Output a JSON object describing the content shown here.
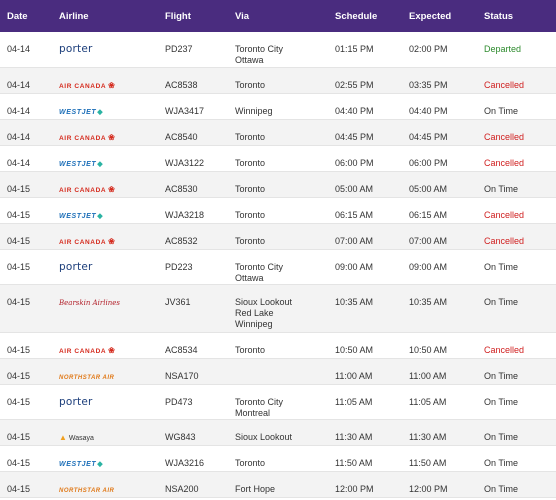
{
  "headers": {
    "date": "Date",
    "airline": "Airline",
    "flight": "Flight",
    "via": "Via",
    "schedule": "Schedule",
    "expected": "Expected",
    "status": "Status"
  },
  "colors": {
    "header_bg": "#4a2c7f",
    "departed": "#2e8b2e",
    "cancelled": "#d02020",
    "on_time": "#8a8a8a"
  },
  "rows": [
    {
      "date": "04-14",
      "airline": "porter",
      "flight": "PD237",
      "via": [
        "Toronto City",
        "Ottawa"
      ],
      "schedule": "01:15 PM",
      "expected": "02:00 PM",
      "status": "Departed"
    },
    {
      "date": "04-14",
      "airline": "AIR CANADA",
      "flight": "AC8538",
      "via": [
        "Toronto"
      ],
      "schedule": "02:55 PM",
      "expected": "03:35 PM",
      "status": "Cancelled"
    },
    {
      "date": "04-14",
      "airline": "WESTJET",
      "flight": "WJA3417",
      "via": [
        "Winnipeg"
      ],
      "schedule": "04:40 PM",
      "expected": "04:40 PM",
      "status": "On Time"
    },
    {
      "date": "04-14",
      "airline": "AIR CANADA",
      "flight": "AC8540",
      "via": [
        "Toronto"
      ],
      "schedule": "04:45 PM",
      "expected": "04:45 PM",
      "status": "Cancelled"
    },
    {
      "date": "04-14",
      "airline": "WESTJET",
      "flight": "WJA3122",
      "via": [
        "Toronto"
      ],
      "schedule": "06:00 PM",
      "expected": "06:00 PM",
      "status": "Cancelled"
    },
    {
      "date": "04-15",
      "airline": "AIR CANADA",
      "flight": "AC8530",
      "via": [
        "Toronto"
      ],
      "schedule": "05:00 AM",
      "expected": "05:00 AM",
      "status": "On Time"
    },
    {
      "date": "04-15",
      "airline": "WESTJET",
      "flight": "WJA3218",
      "via": [
        "Toronto"
      ],
      "schedule": "06:15 AM",
      "expected": "06:15 AM",
      "status": "Cancelled"
    },
    {
      "date": "04-15",
      "airline": "AIR CANADA",
      "flight": "AC8532",
      "via": [
        "Toronto"
      ],
      "schedule": "07:00 AM",
      "expected": "07:00 AM",
      "status": "Cancelled"
    },
    {
      "date": "04-15",
      "airline": "porter",
      "flight": "PD223",
      "via": [
        "Toronto City",
        "Ottawa"
      ],
      "schedule": "09:00 AM",
      "expected": "09:00 AM",
      "status": "On Time"
    },
    {
      "date": "04-15",
      "airline": "Bearskin Airlines",
      "flight": "JV361",
      "via": [
        "Sioux Lookout",
        "Red Lake",
        "Winnipeg"
      ],
      "schedule": "10:35 AM",
      "expected": "10:35 AM",
      "status": "On Time"
    },
    {
      "date": "04-15",
      "airline": "AIR CANADA",
      "flight": "AC8534",
      "via": [
        "Toronto"
      ],
      "schedule": "10:50 AM",
      "expected": "10:50 AM",
      "status": "Cancelled"
    },
    {
      "date": "04-15",
      "airline": "NORTHSTAR AIR",
      "flight": "NSA170",
      "via": [],
      "schedule": "11:00 AM",
      "expected": "11:00 AM",
      "status": "On Time"
    },
    {
      "date": "04-15",
      "airline": "porter",
      "flight": "PD473",
      "via": [
        "Toronto City",
        "Montreal"
      ],
      "schedule": "11:05 AM",
      "expected": "11:05 AM",
      "status": "On Time"
    },
    {
      "date": "04-15",
      "airline": "Wasaya",
      "flight": "WG843",
      "via": [
        "Sioux Lookout"
      ],
      "schedule": "11:30 AM",
      "expected": "11:30 AM",
      "status": "On Time"
    },
    {
      "date": "04-15",
      "airline": "WESTJET",
      "flight": "WJA3216",
      "via": [
        "Toronto"
      ],
      "schedule": "11:50 AM",
      "expected": "11:50 AM",
      "status": "On Time"
    },
    {
      "date": "04-15",
      "airline": "NORTHSTAR AIR",
      "flight": "NSA200",
      "via": [
        "Fort Hope"
      ],
      "schedule": "12:00 PM",
      "expected": "12:00 PM",
      "status": "On Time"
    }
  ]
}
